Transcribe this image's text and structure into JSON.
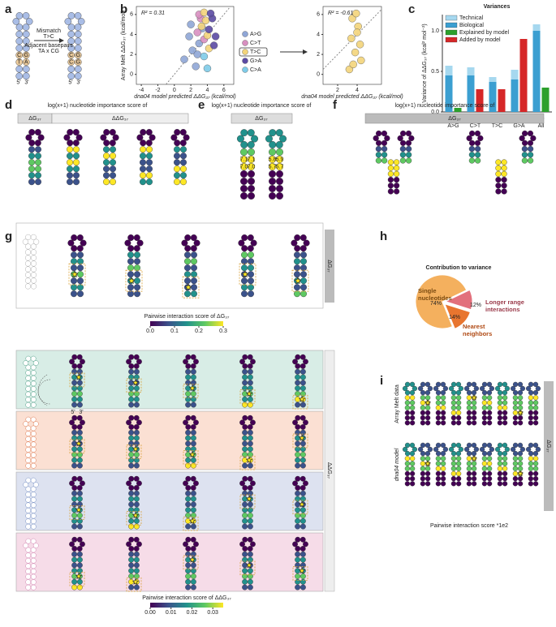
{
  "panel_labels": [
    "a",
    "b",
    "c",
    "d",
    "e",
    "f",
    "g",
    "h",
    "i"
  ],
  "panel_a": {
    "mismatch": "Mismatch",
    "mutation": "T>C",
    "note_lines": [
      "Adjacent basepairs",
      "TA x CG"
    ],
    "strand_ends": [
      "5'",
      "3'"
    ],
    "left_bases": [
      "C",
      "G",
      "T",
      "A"
    ],
    "right_bases": [
      "C",
      "G",
      "C",
      "G"
    ]
  },
  "chart_data": [
    {
      "type": "scatter",
      "annotation": "R² = 0.31",
      "xlabel": "dna04 model predicted ΔΔG₃₇ (kcal/mol)",
      "ylabel": "Array Melt ΔΔG₃₇ (kcal/mol)",
      "xlim": [
        -4.6,
        7.2
      ],
      "ylim": [
        -1,
        6.8
      ],
      "xticks": [
        -4,
        -2,
        0,
        2,
        4,
        6
      ],
      "yticks": [
        0,
        2,
        4,
        6
      ],
      "legend": "right",
      "series": [
        {
          "name": "A>G",
          "color": "#8fa6d6",
          "x": [
            1.2,
            1.8,
            2.2,
            2.6,
            3.0,
            3.4,
            2.0,
            2.8
          ],
          "y": [
            1.5,
            3.8,
            2.4,
            0.8,
            3.1,
            4.6,
            5.0,
            2.0
          ]
        },
        {
          "name": "C>T",
          "color": "#d88fc0",
          "x": [
            2.8,
            3.2,
            3.6,
            3.0
          ],
          "y": [
            4.2,
            5.6,
            3.5,
            6.0
          ]
        },
        {
          "name": "T>C",
          "color": "#f3d47a",
          "x": [
            3.3,
            3.8,
            4.2,
            3.6,
            4.0
          ],
          "y": [
            4.8,
            5.4,
            2.6,
            6.2,
            3.9
          ]
        },
        {
          "name": "G>A",
          "color": "#5b4aa3",
          "x": [
            4.2,
            4.6,
            5.0,
            4.4,
            4.8
          ],
          "y": [
            4.5,
            5.6,
            3.8,
            6.1,
            2.9
          ]
        },
        {
          "name": "C>A",
          "color": "#7ecbe8",
          "x": [
            3.6,
            4.0
          ],
          "y": [
            1.8,
            0.6
          ]
        }
      ]
    },
    {
      "type": "scatter",
      "annotation": "R² = -0.61",
      "xlabel": "dna04 model predicted ΔΔG₃₇ (kcal/mol)",
      "xlim": [
        0.5,
        6.5
      ],
      "ylim": [
        -1,
        6.8
      ],
      "xticks": [
        2,
        4
      ],
      "yticks": [
        0,
        2,
        4,
        6
      ],
      "series": [
        {
          "name": "T>C",
          "color": "#f3d47a",
          "x": [
            3.2,
            3.5,
            3.8,
            4.1,
            4.4,
            3.4,
            3.9,
            4.3,
            3.6,
            4.0
          ],
          "y": [
            0.5,
            5.6,
            2.2,
            4.8,
            1.4,
            3.6,
            6.1,
            3.0,
            1.0,
            4.2
          ]
        }
      ]
    },
    {
      "type": "bar",
      "title": "Variances",
      "ylabel": "Variance of ΔΔG₃₇ (kcal² mol⁻²)",
      "categories": [
        "A>G",
        "C>T",
        "T>C",
        "G>A",
        "All"
      ],
      "category_colors": [
        "#8fa6d6",
        "#d88fc0",
        "#f3d47a",
        "#5b4aa3",
        "#111111"
      ],
      "ylim": [
        0,
        1.2
      ],
      "yticks": [
        {
          "value": 0,
          "label": "0.0"
        },
        {
          "value": 0.5,
          "label": "0.5"
        },
        {
          "value": 1,
          "label": "1.0"
        }
      ],
      "series": [
        {
          "name": "Technical",
          "color": "#a6d8ef",
          "values": [
            0.12,
            0.1,
            0.06,
            0.12,
            0.08
          ]
        },
        {
          "name": "Biological",
          "color": "#3b9fd1",
          "values": [
            0.45,
            0.45,
            0.37,
            0.4,
            1.0
          ]
        },
        {
          "name": "Explained by model",
          "color": "#2ca02c",
          "values": [
            0.05,
            null,
            null,
            null,
            0.3
          ]
        },
        {
          "name": "Added by model",
          "color": "#d62728",
          "values": [
            null,
            0.28,
            0.28,
            0.9,
            null
          ]
        }
      ]
    },
    {
      "type": "pie",
      "title": "Contribution to variance",
      "categories": [
        "Single nucleotides",
        "Nearest neighbors",
        "Longer range interactions"
      ],
      "values": [
        74,
        14,
        12
      ],
      "value_labels": [
        "74%",
        "14%",
        "12%"
      ],
      "colors": [
        "#f4b05e",
        "#e8752f",
        "#e2707c"
      ]
    }
  ],
  "panel_d": {
    "title": "log(x+1) nucleotide importance score of",
    "headers": [
      "ΔG₃₇",
      "ΔΔG₃₇"
    ]
  },
  "panel_e": {
    "title": "log(x+1) nucleotide importance score of",
    "header": "ΔG₃₇",
    "scores": [
      [
        [
          "7.1",
          "7.1"
        ],
        [
          "7.0",
          "7.0"
        ]
      ],
      [
        [
          "5.8",
          "5.9"
        ],
        [
          "5.7",
          "5.7"
        ]
      ]
    ]
  },
  "panel_f": {
    "title": "log(x+1) nucleotide importance score of",
    "header": "ΔG₃₇"
  },
  "panel_g": {
    "side_labels": [
      "ΔG₃₇",
      "ΔΔG₃₇"
    ],
    "strand_ends": [
      "5'",
      "3'"
    ],
    "colorbars": [
      {
        "label": "Pairwise interaction score of ΔG₃₇",
        "lim": [
          0,
          0.3
        ],
        "ticks": [
          {
            "value": 0,
            "label": "0.0"
          },
          0.1,
          0.2,
          0.3
        ]
      },
      {
        "label": "Pairwise interaction score of ΔΔG₃₇",
        "lim": [
          0,
          0.035
        ],
        "ticks": [
          {
            "value": 0,
            "label": "0.00"
          },
          0.01,
          0.02,
          0.03
        ]
      }
    ]
  },
  "panel_i": {
    "row_labels": [
      "Array Melt data",
      "dna04 model"
    ],
    "side_label": "ΔG₃₇",
    "caption": "Pairwise interaction score *1e2"
  }
}
